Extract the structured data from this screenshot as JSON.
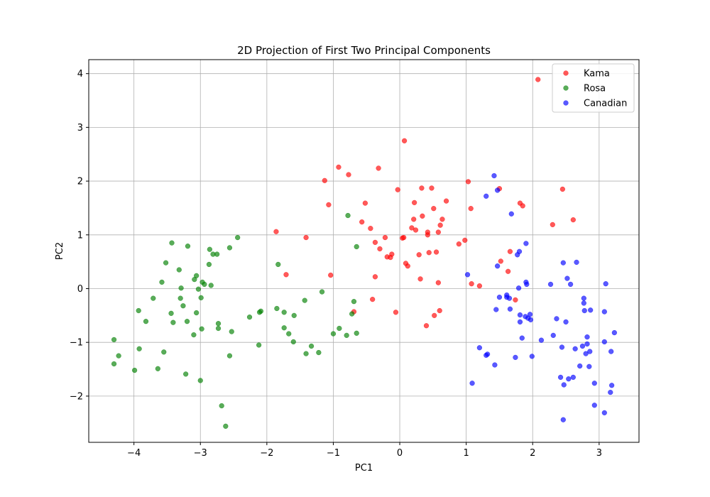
{
  "chart_data": {
    "type": "scatter",
    "title": "2D Projection of First Two Principal Components",
    "xlabel": "PC1",
    "ylabel": "PC2",
    "xlim": [
      -4.68,
      3.6
    ],
    "ylim": [
      -2.86,
      4.26
    ],
    "xticks": [
      -4,
      -3,
      -2,
      -1,
      0,
      1,
      2,
      3
    ],
    "yticks": [
      -2,
      -1,
      0,
      1,
      2,
      3,
      4
    ],
    "xtick_labels": [
      "−4",
      "−3",
      "−2",
      "−1",
      "0",
      "1",
      "2",
      "3"
    ],
    "ytick_labels": [
      "−2",
      "−1",
      "0",
      "1",
      "2",
      "3",
      "4"
    ],
    "grid": true,
    "legend_position": "top-right",
    "series": [
      {
        "name": "Kama",
        "color": "#ff0000",
        "points": [
          [
            2.08,
            3.89
          ],
          [
            0.07,
            2.75
          ],
          [
            -0.92,
            2.26
          ],
          [
            -0.77,
            2.12
          ],
          [
            -0.32,
            2.24
          ],
          [
            -1.13,
            2.01
          ],
          [
            1.03,
            1.99
          ],
          [
            0.33,
            1.87
          ],
          [
            0.48,
            1.87
          ],
          [
            1.5,
            1.86
          ],
          [
            2.45,
            1.85
          ],
          [
            -0.03,
            1.84
          ],
          [
            0.22,
            1.6
          ],
          [
            0.7,
            1.63
          ],
          [
            1.81,
            1.59
          ],
          [
            1.85,
            1.54
          ],
          [
            -1.07,
            1.56
          ],
          [
            -0.52,
            1.59
          ],
          [
            1.07,
            1.49
          ],
          [
            0.51,
            1.49
          ],
          [
            0.34,
            1.35
          ],
          [
            0.21,
            1.29
          ],
          [
            0.64,
            1.29
          ],
          [
            -0.57,
            1.24
          ],
          [
            2.61,
            1.28
          ],
          [
            2.3,
            1.19
          ],
          [
            0.61,
            1.18
          ],
          [
            0.18,
            1.13
          ],
          [
            0.24,
            1.09
          ],
          [
            -0.44,
            1.12
          ],
          [
            -1.86,
            1.06
          ],
          [
            0.42,
            1.05
          ],
          [
            0.58,
            1.05
          ],
          [
            0.42,
            1.0
          ],
          [
            -1.41,
            0.95
          ],
          [
            0.04,
            0.94
          ],
          [
            0.06,
            0.95
          ],
          [
            -0.22,
            0.95
          ],
          [
            0.98,
            0.9
          ],
          [
            0.89,
            0.83
          ],
          [
            -0.37,
            0.86
          ],
          [
            -0.3,
            0.74
          ],
          [
            1.66,
            0.69
          ],
          [
            0.44,
            0.67
          ],
          [
            0.55,
            0.68
          ],
          [
            0.29,
            0.63
          ],
          [
            -0.12,
            0.64
          ],
          [
            -0.19,
            0.59
          ],
          [
            -0.14,
            0.58
          ],
          [
            1.52,
            0.51
          ],
          [
            0.09,
            0.47
          ],
          [
            -1.71,
            0.26
          ],
          [
            -1.04,
            0.25
          ],
          [
            0.12,
            0.42
          ],
          [
            1.63,
            0.32
          ],
          [
            -0.37,
            0.22
          ],
          [
            0.31,
            0.18
          ],
          [
            1.08,
            0.09
          ],
          [
            0.58,
            0.11
          ],
          [
            1.2,
            0.05
          ],
          [
            -0.41,
            -0.2
          ],
          [
            1.74,
            -0.21
          ],
          [
            -0.69,
            -0.43
          ],
          [
            0.6,
            -0.41
          ],
          [
            -0.06,
            -0.44
          ],
          [
            0.52,
            -0.5
          ],
          [
            0.4,
            -0.69
          ]
        ]
      },
      {
        "name": "Rosa",
        "color": "#008000",
        "points": [
          [
            -2.44,
            0.95
          ],
          [
            -3.43,
            0.85
          ],
          [
            -3.19,
            0.79
          ],
          [
            -2.56,
            0.76
          ],
          [
            -2.86,
            0.73
          ],
          [
            -2.81,
            0.64
          ],
          [
            -2.75,
            0.64
          ],
          [
            -3.52,
            0.48
          ],
          [
            -2.87,
            0.45
          ],
          [
            -3.32,
            0.35
          ],
          [
            -3.06,
            0.24
          ],
          [
            -3.09,
            0.17
          ],
          [
            -3.58,
            0.12
          ],
          [
            -2.97,
            0.12
          ],
          [
            -2.94,
            0.08
          ],
          [
            -2.84,
            0.06
          ],
          [
            -3.29,
            0.01
          ],
          [
            -3.03,
            -0.01
          ],
          [
            -3.71,
            -0.18
          ],
          [
            -3.3,
            -0.18
          ],
          [
            -2.99,
            -0.17
          ],
          [
            -3.26,
            -0.32
          ],
          [
            -3.44,
            -0.46
          ],
          [
            -3.06,
            -0.45
          ],
          [
            -3.93,
            -0.41
          ],
          [
            -3.41,
            -0.63
          ],
          [
            -3.2,
            -0.61
          ],
          [
            -3.82,
            -0.61
          ],
          [
            -2.73,
            -0.65
          ],
          [
            -2.98,
            -0.75
          ],
          [
            -3.1,
            -0.86
          ],
          [
            -2.73,
            -0.74
          ],
          [
            -2.53,
            -0.8
          ],
          [
            -1.74,
            -0.44
          ],
          [
            -1.83,
            0.45
          ],
          [
            -0.78,
            1.36
          ],
          [
            -0.65,
            0.78
          ],
          [
            -1.17,
            -0.06
          ],
          [
            -1.85,
            -0.37
          ],
          [
            -2.09,
            -0.42
          ],
          [
            -2.26,
            -0.53
          ],
          [
            -2.11,
            -0.44
          ],
          [
            -1.59,
            -0.5
          ],
          [
            -1.43,
            -0.22
          ],
          [
            -0.69,
            -0.24
          ],
          [
            -0.72,
            -0.47
          ],
          [
            -0.91,
            -0.74
          ],
          [
            -1.0,
            -0.84
          ],
          [
            -0.8,
            -0.87
          ],
          [
            -0.65,
            -0.83
          ],
          [
            -1.74,
            -0.73
          ],
          [
            -1.67,
            -0.84
          ],
          [
            -1.6,
            -0.99
          ],
          [
            -1.33,
            -1.07
          ],
          [
            -1.41,
            -1.21
          ],
          [
            -1.22,
            -1.19
          ],
          [
            -2.12,
            -1.05
          ],
          [
            -4.3,
            -0.95
          ],
          [
            -4.23,
            -1.25
          ],
          [
            -3.92,
            -1.12
          ],
          [
            -3.55,
            -1.18
          ],
          [
            -4.3,
            -1.4
          ],
          [
            -3.99,
            -1.52
          ],
          [
            -3.64,
            -1.49
          ],
          [
            -3.22,
            -1.59
          ],
          [
            -2.56,
            -1.25
          ],
          [
            -3.0,
            -1.71
          ],
          [
            -2.68,
            -2.18
          ],
          [
            -2.62,
            -2.56
          ]
        ]
      },
      {
        "name": "Canadian",
        "color": "#0000ff",
        "points": [
          [
            1.42,
            2.1
          ],
          [
            1.3,
            1.72
          ],
          [
            1.47,
            1.83
          ],
          [
            1.68,
            1.39
          ],
          [
            1.9,
            0.84
          ],
          [
            1.77,
            0.63
          ],
          [
            1.8,
            0.69
          ],
          [
            1.47,
            0.42
          ],
          [
            2.46,
            0.48
          ],
          [
            2.66,
            0.49
          ],
          [
            1.02,
            0.26
          ],
          [
            2.52,
            0.19
          ],
          [
            1.91,
            0.08
          ],
          [
            1.9,
            0.12
          ],
          [
            1.79,
            0.01
          ],
          [
            2.27,
            0.08
          ],
          [
            2.57,
            0.08
          ],
          [
            3.1,
            0.09
          ],
          [
            1.61,
            -0.12
          ],
          [
            1.61,
            -0.16
          ],
          [
            1.65,
            -0.18
          ],
          [
            1.5,
            -0.16
          ],
          [
            1.45,
            -0.39
          ],
          [
            1.66,
            -0.38
          ],
          [
            2.77,
            -0.18
          ],
          [
            2.77,
            -0.27
          ],
          [
            2.78,
            -0.41
          ],
          [
            2.87,
            -0.4
          ],
          [
            3.08,
            -0.43
          ],
          [
            1.81,
            -0.49
          ],
          [
            1.89,
            -0.52
          ],
          [
            1.93,
            -0.55
          ],
          [
            1.96,
            -0.48
          ],
          [
            1.97,
            -0.58
          ],
          [
            1.81,
            -0.62
          ],
          [
            2.36,
            -0.56
          ],
          [
            2.5,
            -0.62
          ],
          [
            2.31,
            -0.87
          ],
          [
            2.13,
            -0.96
          ],
          [
            2.82,
            -0.9
          ],
          [
            3.08,
            -0.99
          ],
          [
            3.23,
            -0.82
          ],
          [
            1.84,
            -0.92
          ],
          [
            2.44,
            -1.09
          ],
          [
            2.64,
            -1.12
          ],
          [
            2.75,
            -1.07
          ],
          [
            2.8,
            -1.21
          ],
          [
            2.82,
            -1.03
          ],
          [
            2.86,
            -1.17
          ],
          [
            3.18,
            -1.17
          ],
          [
            1.2,
            -1.1
          ],
          [
            1.3,
            -1.24
          ],
          [
            1.32,
            -1.22
          ],
          [
            1.43,
            -1.42
          ],
          [
            1.74,
            -1.28
          ],
          [
            1.99,
            -1.26
          ],
          [
            2.71,
            -1.44
          ],
          [
            2.85,
            -1.45
          ],
          [
            2.42,
            -1.65
          ],
          [
            2.47,
            -1.79
          ],
          [
            2.54,
            -1.68
          ],
          [
            2.61,
            -1.65
          ],
          [
            2.93,
            -1.76
          ],
          [
            3.19,
            -1.8
          ],
          [
            3.17,
            -1.93
          ],
          [
            2.93,
            -2.17
          ],
          [
            3.08,
            -2.31
          ],
          [
            2.46,
            -2.44
          ],
          [
            1.09,
            -1.76
          ]
        ]
      }
    ]
  }
}
